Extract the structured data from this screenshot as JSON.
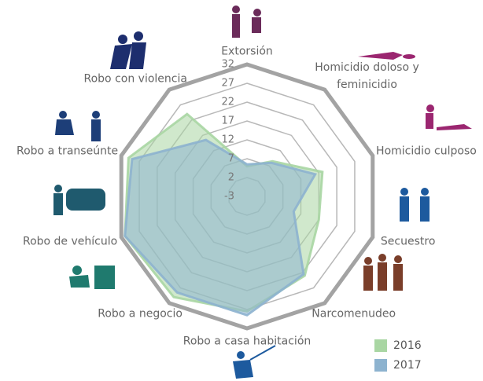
{
  "chart_data": {
    "type": "radar",
    "categories": [
      "Extorsión",
      "Homicidio doloso y feminicidio",
      "Homicidio culposo",
      "Secuestro",
      "Narcomenudeo",
      "Robo a casa habitación",
      "Robo a negocio",
      "Robo de vehículo",
      "Robo a transeúnte",
      "Robo con violencia"
    ],
    "series": [
      {
        "name": "2016",
        "color": "#a9d6a3",
        "values": [
          5,
          8.5,
          18,
          17,
          23,
          27.5,
          30,
          31,
          30,
          24
        ]
      },
      {
        "name": "2017",
        "color": "#8db3cf",
        "values": [
          5.5,
          8,
          16,
          10,
          22.5,
          28.5,
          28.5,
          31,
          29,
          15.5
        ]
      }
    ],
    "ylim": [
      -3,
      32
    ],
    "yticks": [
      -3,
      2,
      7,
      12,
      17,
      22,
      27,
      32
    ],
    "grid": true
  }
}
